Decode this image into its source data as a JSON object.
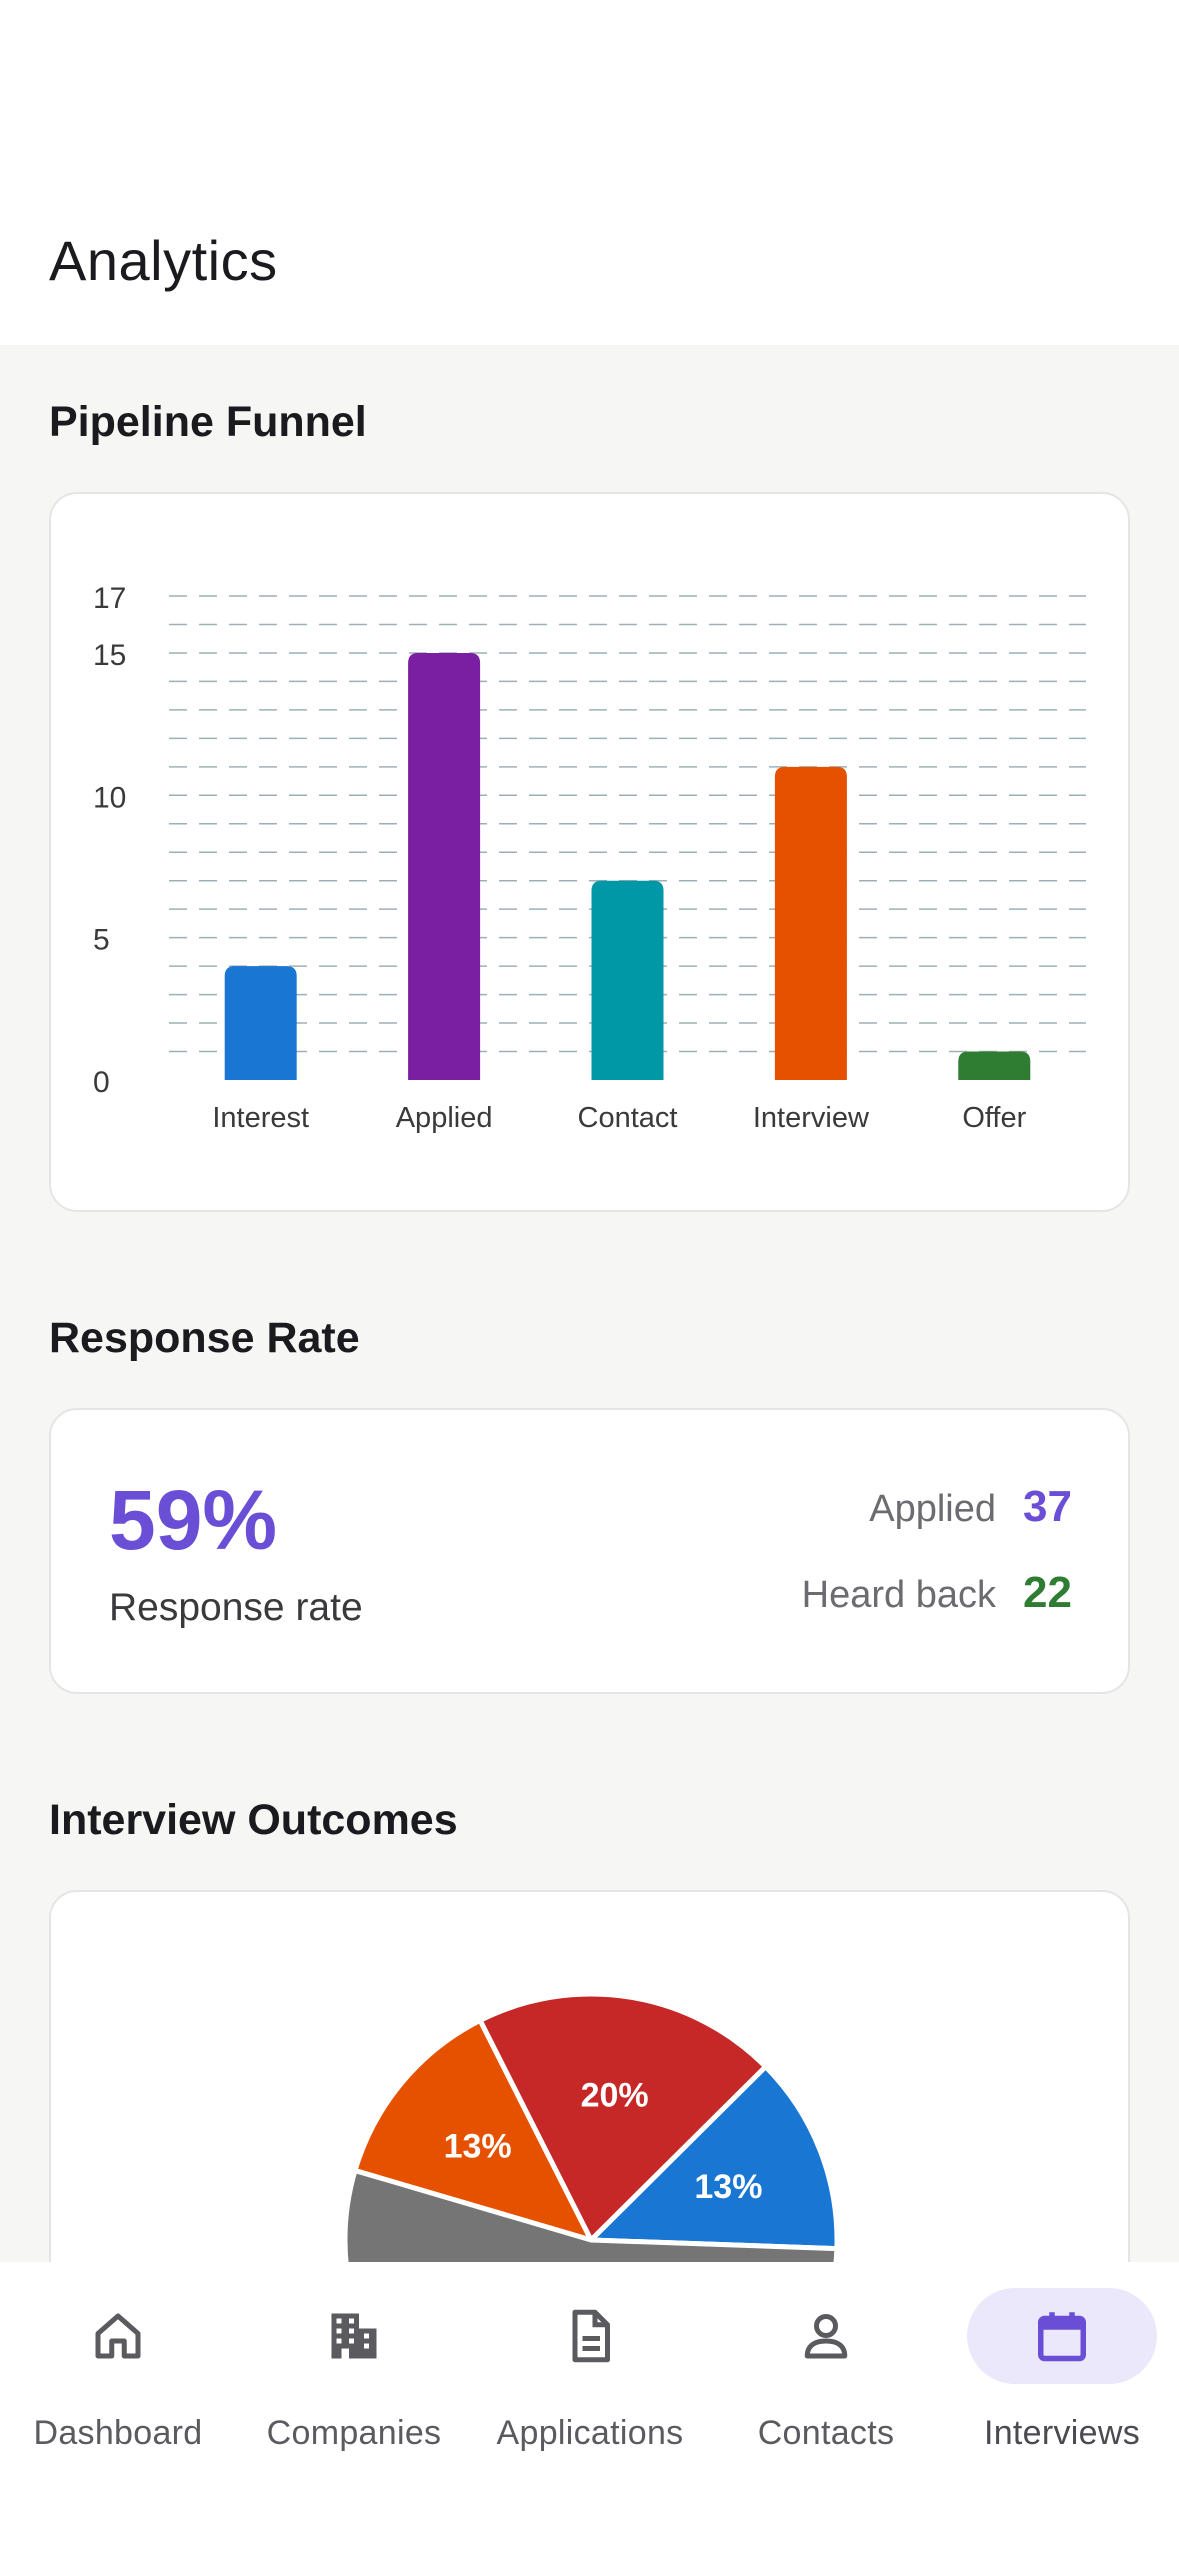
{
  "page": {
    "title": "Analytics"
  },
  "sections": {
    "funnel": "Pipeline Funnel",
    "response": "Response Rate",
    "outcomes": "Interview Outcomes"
  },
  "chart_data": [
    {
      "type": "bar",
      "title": "Pipeline Funnel",
      "categories": [
        "Interest",
        "Applied",
        "Contact",
        "Interview",
        "Offer"
      ],
      "values": [
        4,
        15,
        7,
        11,
        1
      ],
      "colors": [
        "#1976d2",
        "#7b1fa2",
        "#0097a7",
        "#e65100",
        "#2e7d32"
      ],
      "ylim": [
        0,
        17
      ],
      "yticks": [
        0,
        5,
        10,
        15,
        17
      ],
      "grid": true
    },
    {
      "type": "pie",
      "title": "Interview Outcomes",
      "slices": [
        {
          "label": "13%",
          "value": 13,
          "color": "#1976d2"
        },
        {
          "label": "20%",
          "value": 20,
          "color": "#c62828"
        },
        {
          "label": "13%",
          "value": 13,
          "color": "#e65100"
        },
        {
          "label": "",
          "value": 54,
          "color": "#757575"
        }
      ]
    }
  ],
  "response": {
    "percent": "59%",
    "label": "Response rate",
    "applied_label": "Applied",
    "applied_value": "37",
    "heard_label": "Heard back",
    "heard_value": "22",
    "applied_color": "#6a4fd6",
    "heard_color": "#2e7d32"
  },
  "nav": {
    "items": [
      {
        "label": "Dashboard",
        "icon": "home-icon"
      },
      {
        "label": "Companies",
        "icon": "building-icon"
      },
      {
        "label": "Applications",
        "icon": "document-icon"
      },
      {
        "label": "Contacts",
        "icon": "person-icon"
      },
      {
        "label": "Interviews",
        "icon": "calendar-icon",
        "active": true
      }
    ],
    "active_color": "#6a4fd6"
  }
}
